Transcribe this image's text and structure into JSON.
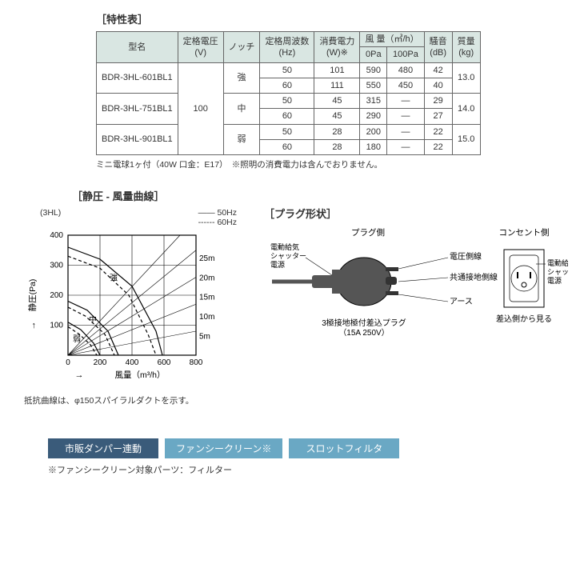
{
  "specTable": {
    "title": "［特性表］",
    "header_bg": "#d9e6e2",
    "columns": [
      "型名",
      "定格電圧\n(V)",
      "ノッチ",
      "定格周波数\n(Hz)",
      "消費電力\n(W)※",
      "0Pa",
      "100Pa",
      "騒音\n(dB)",
      "質量\n(kg)"
    ],
    "airflow_group": "風 量（㎥/h）",
    "models": [
      "BDR-3HL-601BL1",
      "BDR-3HL-751BL1",
      "BDR-3HL-901BL1"
    ],
    "voltage": "100",
    "notches": [
      "強",
      "中",
      "弱"
    ],
    "rows": [
      {
        "hz": "50",
        "w": "101",
        "f0": "590",
        "f100": "480",
        "db": "42"
      },
      {
        "hz": "60",
        "w": "111",
        "f0": "550",
        "f100": "450",
        "db": "40"
      },
      {
        "hz": "50",
        "w": "45",
        "f0": "315",
        "f100": "—",
        "db": "29"
      },
      {
        "hz": "60",
        "w": "45",
        "f0": "290",
        "f100": "—",
        "db": "27"
      },
      {
        "hz": "50",
        "w": "28",
        "f0": "200",
        "f100": "—",
        "db": "22"
      },
      {
        "hz": "60",
        "w": "28",
        "f0": "180",
        "f100": "—",
        "db": "22"
      }
    ],
    "mass": [
      "13.0",
      "14.0",
      "15.0"
    ],
    "footnote": "ミニ電球1ヶ付（40W 口金：E17）　※照明の消費電力は含んでおりません。"
  },
  "chart": {
    "title": "［静圧 - 風量曲線］",
    "subtitle": "(3HL)",
    "legend_50": "—— 50Hz",
    "legend_60": "------ 60Hz",
    "x_label": "風量（m³/h）",
    "y_label": "静圧(Pa)",
    "x_ticks": [
      "0",
      "200",
      "400",
      "600",
      "800"
    ],
    "y_ticks": [
      "0",
      "100",
      "200",
      "300",
      "400"
    ],
    "diag_labels": [
      "5m",
      "10m",
      "15m",
      "20m",
      "25m"
    ],
    "markers": [
      "強",
      "中",
      "弱"
    ],
    "note": "抵抗曲線は、φ150スパイラルダクトを示す。",
    "colors": {
      "grid": "#000000",
      "bg": "#ffffff"
    }
  },
  "plug": {
    "title": "［プラグ形状］",
    "left_top": "プラグ側",
    "right_top": "コンセント側",
    "lbl_voltage": "電圧側線",
    "lbl_ground_common": "共通接地側線",
    "lbl_earth": "アース",
    "lbl_shutter": "電動給気\nシャッター\n電源",
    "lbl_shutter2": "電動給気\nシャッター\n電源",
    "caption_left": "3極接地極付差込プラグ\n（15A 250V）",
    "caption_right": "差込側から見る"
  },
  "tags": {
    "items": [
      {
        "label": "市販ダンパー連動",
        "color": "#3a5b7a"
      },
      {
        "label": "ファンシークリーン※",
        "color": "#6aa8c4"
      },
      {
        "label": "スロットフィルタ",
        "color": "#6aa8c4"
      }
    ],
    "note": "※ファンシークリーン対象パーツ：フィルター"
  }
}
